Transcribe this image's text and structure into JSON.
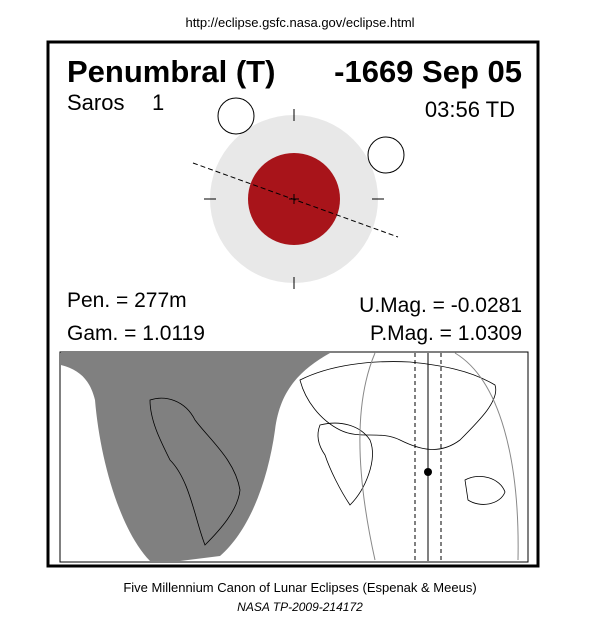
{
  "url": "http://eclipse.gsfc.nasa.gov/eclipse.html",
  "header": {
    "title": "Penumbral (T)",
    "date": "-1669 Sep 05",
    "saros_label": "Saros",
    "saros_number": "1",
    "time": "03:56 TD"
  },
  "parameters": {
    "pen": "Pen. = 277m",
    "gam": "Gam. = 1.0119",
    "umag": "U.Mag. = -0.0281",
    "pmag": "P.Mag. = 1.0309"
  },
  "footer": {
    "line1": "Five Millennium Canon of Lunar Eclipses (Espenak & Meeus)",
    "line2": "NASA TP-2009-214172"
  }
}
